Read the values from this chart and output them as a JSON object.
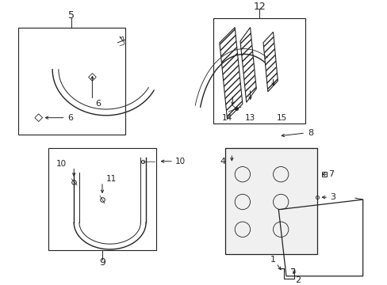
{
  "bg_color": "#ffffff",
  "fig_width": 4.89,
  "fig_height": 3.6,
  "dpi": 100,
  "gray": "#222222"
}
